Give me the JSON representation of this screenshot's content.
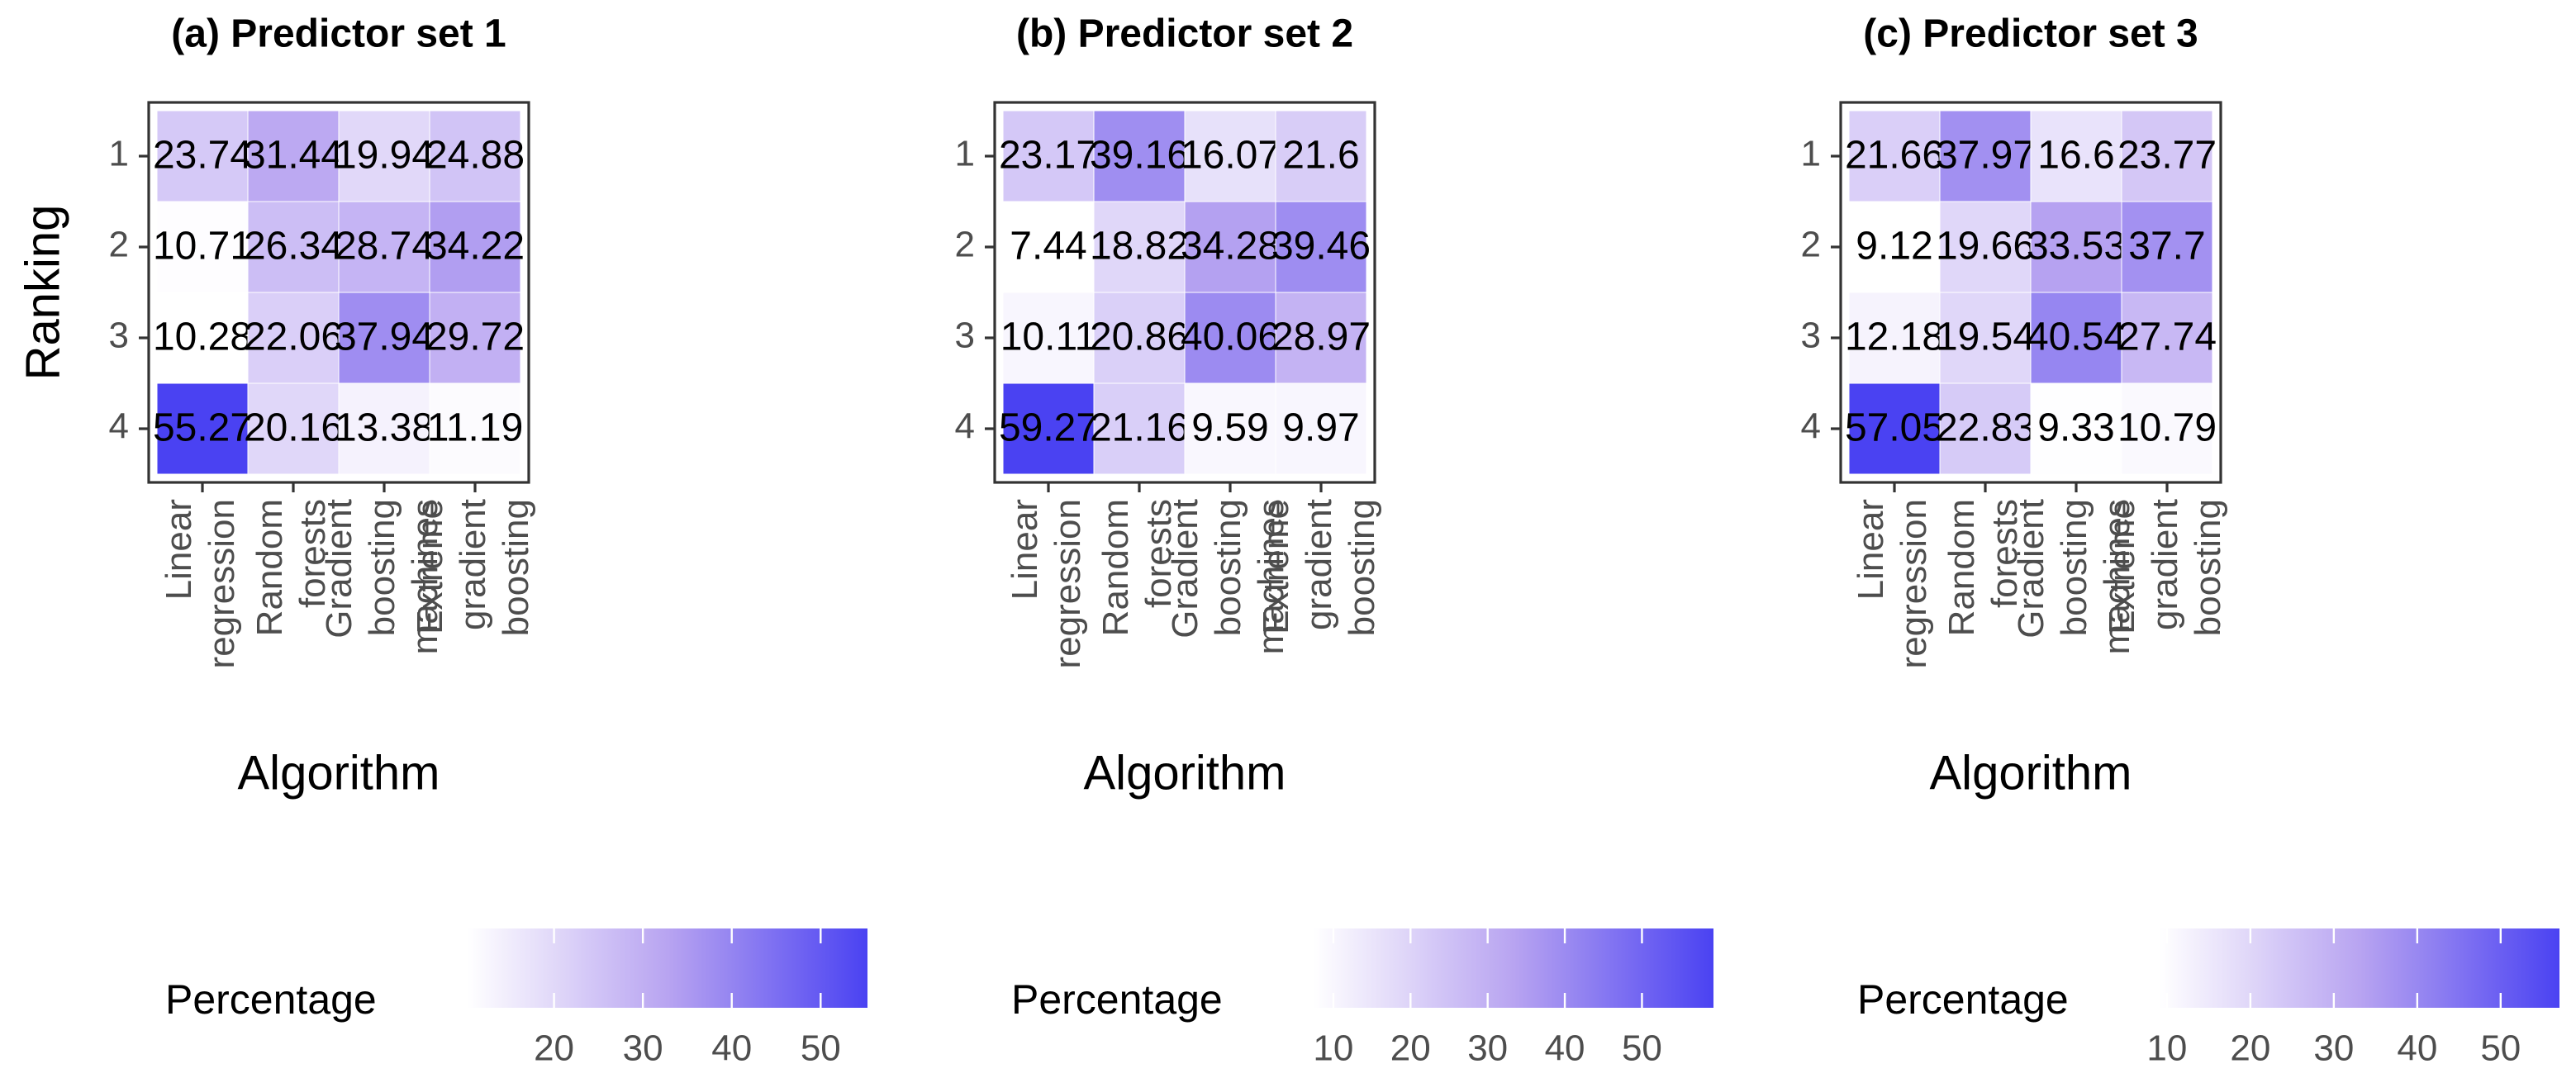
{
  "chart_data": [
    {
      "type": "heatmap",
      "title": "(a) Predictor set 1",
      "x_label": "Algorithm",
      "y_label": "Ranking",
      "x_categories": [
        "Linear regression",
        "Random forests",
        "Gradient boosting machines",
        "Extreme gradient boosting"
      ],
      "y_categories": [
        "1",
        "2",
        "3",
        "4"
      ],
      "values": [
        [
          23.74,
          31.44,
          19.94,
          24.88
        ],
        [
          10.71,
          26.34,
          28.74,
          34.22
        ],
        [
          10.28,
          22.06,
          37.94,
          29.72
        ],
        [
          55.27,
          20.16,
          13.38,
          11.19
        ]
      ],
      "legend_title": "Percentage",
      "colorscale": [
        "#ffffff",
        "#b8a4f1",
        "#4a42f2"
      ],
      "clim": [
        10.28,
        55.27
      ],
      "cticks": [
        20,
        30,
        40,
        50
      ]
    },
    {
      "type": "heatmap",
      "title": "(b) Predictor set 2",
      "x_label": "Algorithm",
      "x_categories": [
        "Linear regression",
        "Random forests",
        "Gradient boosting machines",
        "Extreme gradient boosting"
      ],
      "y_categories": [
        "1",
        "2",
        "3",
        "4"
      ],
      "values": [
        [
          23.17,
          39.16,
          16.07,
          21.6
        ],
        [
          7.44,
          18.82,
          34.28,
          39.46
        ],
        [
          10.11,
          20.86,
          40.06,
          28.97
        ],
        [
          59.27,
          21.16,
          9.59,
          9.97
        ]
      ],
      "legend_title": "Percentage",
      "colorscale": [
        "#ffffff",
        "#b8a4f1",
        "#4a42f2"
      ],
      "clim": [
        7.44,
        59.27
      ],
      "cticks": [
        10,
        20,
        30,
        40,
        50
      ]
    },
    {
      "type": "heatmap",
      "title": "(c) Predictor set 3",
      "x_label": "Algorithm",
      "x_categories": [
        "Linear regression",
        "Random forests",
        "Gradient boosting machines",
        "Extreme gradient boosting"
      ],
      "y_categories": [
        "1",
        "2",
        "3",
        "4"
      ],
      "values": [
        [
          21.66,
          37.97,
          16.6,
          23.77
        ],
        [
          9.12,
          19.66,
          33.53,
          37.7
        ],
        [
          12.18,
          19.54,
          40.54,
          27.74
        ],
        [
          57.05,
          22.83,
          9.33,
          10.79
        ]
      ],
      "legend_title": "Percentage",
      "colorscale": [
        "#ffffff",
        "#b8a4f1",
        "#4a42f2"
      ],
      "clim": [
        9.12,
        57.05
      ],
      "cticks": [
        10,
        20,
        30,
        40,
        50
      ]
    }
  ]
}
